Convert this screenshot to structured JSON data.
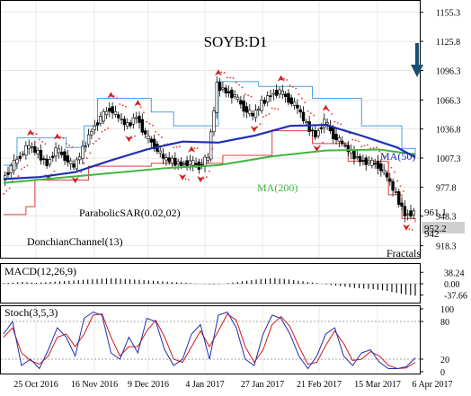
{
  "chart_data": {
    "type": "line",
    "symbol": "SOYB:D1",
    "title": "SOYB:D1",
    "price_axis": {
      "ticks": [
        "1155.3",
        "1125.8",
        "1096.3",
        "1066.3",
        "1036.8",
        "1007.3",
        "977.8",
        "948.3",
        "918.3"
      ],
      "ylim": [
        907,
        1166
      ]
    },
    "x_ticks": [
      "25 Oct 2016",
      "16 Nov 2016",
      "9 Dec 2016",
      "4 Jan 2017",
      "27 Jan 2017",
      "21 Feb 2017",
      "15 Mar 2017",
      "6 Apr 2017"
    ],
    "price_labels": {
      "current": "952.2",
      "upper_level": "961.1",
      "lower_level": "942"
    },
    "indicators": {
      "ma50_label": "MA(50)",
      "ma200_label": "MA(200)",
      "sar_label": "ParabolicSAR(0.02,02)",
      "donchian_label": "DonchianChannel(13)",
      "fractals_label": "Fractals"
    },
    "ma50": [
      [
        0,
        986
      ],
      [
        40,
        988
      ],
      [
        80,
        993
      ],
      [
        120,
        1005
      ],
      [
        160,
        1016
      ],
      [
        200,
        1024
      ],
      [
        240,
        1023
      ],
      [
        280,
        1030
      ],
      [
        320,
        1040
      ],
      [
        360,
        1041
      ],
      [
        400,
        1030
      ],
      [
        440,
        1018
      ],
      [
        460,
        1008
      ]
    ],
    "ma200": [
      [
        0,
        982
      ],
      [
        60,
        987
      ],
      [
        120,
        992
      ],
      [
        180,
        997
      ],
      [
        240,
        1000
      ],
      [
        300,
        1009
      ],
      [
        360,
        1015
      ],
      [
        420,
        1016
      ],
      [
        460,
        1011
      ]
    ],
    "close": [
      [
        0,
        985
      ],
      [
        10,
        998
      ],
      [
        20,
        1010
      ],
      [
        30,
        1020
      ],
      [
        40,
        1012
      ],
      [
        50,
        1001
      ],
      [
        60,
        1016
      ],
      [
        70,
        1008
      ],
      [
        80,
        998
      ],
      [
        90,
        1016
      ],
      [
        100,
        1036
      ],
      [
        110,
        1048
      ],
      [
        120,
        1058
      ],
      [
        130,
        1048
      ],
      [
        140,
        1040
      ],
      [
        150,
        1050
      ],
      [
        160,
        1030
      ],
      [
        170,
        1020
      ],
      [
        180,
        1007
      ],
      [
        190,
        1004
      ],
      [
        200,
        1001
      ],
      [
        210,
        1003
      ],
      [
        220,
        999
      ],
      [
        230,
        1008
      ],
      [
        240,
        1081
      ],
      [
        250,
        1075
      ],
      [
        260,
        1070
      ],
      [
        270,
        1058
      ],
      [
        280,
        1050
      ],
      [
        290,
        1063
      ],
      [
        300,
        1072
      ],
      [
        310,
        1075
      ],
      [
        320,
        1067
      ],
      [
        330,
        1058
      ],
      [
        340,
        1041
      ],
      [
        350,
        1030
      ],
      [
        360,
        1045
      ],
      [
        370,
        1030
      ],
      [
        380,
        1022
      ],
      [
        390,
        1012
      ],
      [
        400,
        1005
      ],
      [
        410,
        1003
      ],
      [
        420,
        1000
      ],
      [
        430,
        988
      ],
      [
        440,
        970
      ],
      [
        450,
        950
      ],
      [
        460,
        952
      ]
    ],
    "donchian_upper": [
      [
        0,
        1000
      ],
      [
        15,
        1028
      ],
      [
        65,
        1028
      ],
      [
        70,
        1018
      ],
      [
        90,
        1040
      ],
      [
        105,
        1068
      ],
      [
        150,
        1068
      ],
      [
        165,
        1054
      ],
      [
        190,
        1040
      ],
      [
        235,
        1040
      ],
      [
        240,
        1085
      ],
      [
        275,
        1085
      ],
      [
        285,
        1080
      ],
      [
        330,
        1080
      ],
      [
        345,
        1068
      ],
      [
        385,
        1068
      ],
      [
        400,
        1040
      ],
      [
        420,
        1040
      ],
      [
        445,
        1017
      ],
      [
        460,
        1010
      ]
    ],
    "donchian_lower": [
      [
        0,
        950
      ],
      [
        25,
        958
      ],
      [
        35,
        985
      ],
      [
        80,
        985
      ],
      [
        95,
        999
      ],
      [
        150,
        999
      ],
      [
        165,
        1002
      ],
      [
        230,
        1002
      ],
      [
        245,
        1010
      ],
      [
        290,
        1010
      ],
      [
        300,
        1035
      ],
      [
        335,
        1035
      ],
      [
        345,
        1022
      ],
      [
        365,
        1022
      ],
      [
        385,
        1004
      ],
      [
        410,
        1004
      ],
      [
        430,
        970
      ],
      [
        445,
        946
      ],
      [
        460,
        942
      ]
    ],
    "macd": {
      "label": "MACD(12,26,9)",
      "ticks": [
        "38.24",
        "0.00",
        "-37.66"
      ],
      "ylim": [
        -60,
        60
      ]
    },
    "macd_hist": [
      2,
      3,
      4,
      5,
      6,
      5,
      4,
      3,
      4,
      5,
      6,
      7,
      8,
      9,
      10,
      11,
      12,
      13,
      14,
      15,
      16,
      17,
      18,
      18,
      18,
      17,
      16,
      15,
      14,
      13,
      12,
      11,
      10,
      9,
      8,
      7,
      6,
      5,
      4,
      3,
      2,
      1,
      0,
      -1,
      -2,
      -2,
      -1,
      0,
      2,
      4,
      6,
      8,
      10,
      12,
      14,
      16,
      17,
      18,
      18,
      17,
      16,
      14,
      12,
      10,
      8,
      6,
      4,
      2,
      0,
      -2,
      -4,
      -6,
      -8,
      -10,
      -12,
      -14,
      -15,
      -16,
      -17,
      -18,
      -20,
      -22,
      -24,
      -27,
      -30,
      -33,
      -36,
      -38,
      -40
    ],
    "stoch": {
      "label": "Stoch(3,5,3)",
      "ticks": [
        "100",
        "80",
        "20",
        "0"
      ],
      "ylim": [
        0,
        100
      ],
      "k": [
        [
          0,
          60
        ],
        [
          10,
          80
        ],
        [
          20,
          10
        ],
        [
          30,
          20
        ],
        [
          40,
          5
        ],
        [
          50,
          35
        ],
        [
          60,
          70
        ],
        [
          70,
          55
        ],
        [
          80,
          25
        ],
        [
          90,
          85
        ],
        [
          100,
          95
        ],
        [
          110,
          90
        ],
        [
          120,
          30
        ],
        [
          130,
          20
        ],
        [
          140,
          55
        ],
        [
          150,
          30
        ],
        [
          160,
          85
        ],
        [
          170,
          80
        ],
        [
          180,
          35
        ],
        [
          190,
          10
        ],
        [
          200,
          20
        ],
        [
          210,
          60
        ],
        [
          220,
          75
        ],
        [
          230,
          20
        ],
        [
          240,
          90
        ],
        [
          250,
          95
        ],
        [
          260,
          70
        ],
        [
          270,
          20
        ],
        [
          280,
          10
        ],
        [
          290,
          60
        ],
        [
          300,
          90
        ],
        [
          310,
          85
        ],
        [
          320,
          60
        ],
        [
          330,
          25
        ],
        [
          340,
          5
        ],
        [
          350,
          25
        ],
        [
          360,
          60
        ],
        [
          370,
          70
        ],
        [
          380,
          25
        ],
        [
          390,
          10
        ],
        [
          400,
          30
        ],
        [
          410,
          35
        ],
        [
          420,
          15
        ],
        [
          430,
          5
        ],
        [
          440,
          5
        ],
        [
          450,
          8
        ],
        [
          460,
          22
        ]
      ],
      "d": [
        [
          0,
          55
        ],
        [
          10,
          70
        ],
        [
          20,
          30
        ],
        [
          30,
          18
        ],
        [
          40,
          12
        ],
        [
          50,
          25
        ],
        [
          60,
          55
        ],
        [
          70,
          60
        ],
        [
          80,
          40
        ],
        [
          90,
          60
        ],
        [
          100,
          90
        ],
        [
          110,
          92
        ],
        [
          120,
          55
        ],
        [
          130,
          25
        ],
        [
          140,
          40
        ],
        [
          150,
          40
        ],
        [
          160,
          65
        ],
        [
          170,
          82
        ],
        [
          180,
          55
        ],
        [
          190,
          20
        ],
        [
          200,
          15
        ],
        [
          210,
          40
        ],
        [
          220,
          65
        ],
        [
          230,
          40
        ],
        [
          240,
          65
        ],
        [
          250,
          92
        ],
        [
          260,
          82
        ],
        [
          270,
          40
        ],
        [
          280,
          15
        ],
        [
          290,
          35
        ],
        [
          300,
          75
        ],
        [
          310,
          88
        ],
        [
          320,
          72
        ],
        [
          330,
          40
        ],
        [
          340,
          12
        ],
        [
          350,
          15
        ],
        [
          360,
          42
        ],
        [
          370,
          65
        ],
        [
          380,
          45
        ],
        [
          390,
          18
        ],
        [
          400,
          20
        ],
        [
          410,
          32
        ],
        [
          420,
          25
        ],
        [
          430,
          10
        ],
        [
          440,
          5
        ],
        [
          450,
          6
        ],
        [
          460,
          15
        ]
      ]
    }
  },
  "colors": {
    "bullish_candle": "#ffffff",
    "bearish_candle": "#000000",
    "ma50": "#1f2fb3",
    "ma200": "#40b640",
    "sar": "#e8322c",
    "donchian_upper": "#4aa0e0",
    "donchian_lower": "#d84040",
    "fractal": "#d61e1e",
    "stoch_k": "#1f2fb3",
    "stoch_d": "#d01a1a",
    "arrow": "#1b4f6e",
    "grid": "#d9d9d9",
    "text": "#000000"
  }
}
